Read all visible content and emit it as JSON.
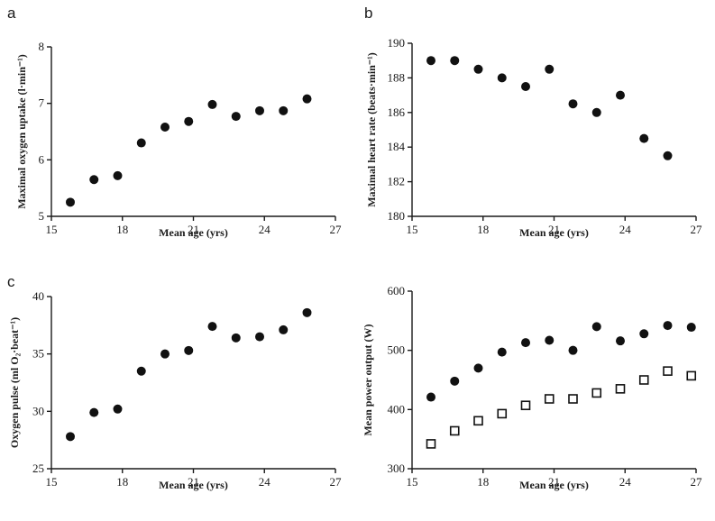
{
  "chart_data": [
    {
      "type": "scatter",
      "panel": "a",
      "xlabel": "Mean age (yrs)",
      "ylabel": "Maximal oxygen uptake (l·min⁻¹)",
      "xlim": [
        15,
        27
      ],
      "ylim": [
        5,
        8
      ],
      "xticks": [
        "15",
        "18",
        "21",
        "24",
        "27"
      ],
      "yticks": [
        "5",
        "6",
        "7",
        "8"
      ],
      "series": [
        {
          "marker": "filled-circle",
          "x": [
            15.8,
            16.8,
            17.8,
            18.8,
            19.8,
            20.8,
            21.8,
            22.8,
            23.8,
            24.8,
            25.8
          ],
          "y": [
            5.25,
            5.65,
            5.72,
            6.3,
            6.58,
            6.68,
            6.98,
            6.77,
            6.87,
            6.87,
            7.08
          ]
        }
      ]
    },
    {
      "type": "scatter",
      "panel": "b",
      "xlabel": "Mean age (yrs)",
      "ylabel": "Maximal heart rate (beats·min⁻¹)",
      "xlim": [
        15,
        27
      ],
      "ylim": [
        180,
        190
      ],
      "xticks": [
        "15",
        "18",
        "21",
        "24",
        "27"
      ],
      "yticks": [
        "180",
        "182",
        "184",
        "186",
        "188",
        "190"
      ],
      "series": [
        {
          "marker": "filled-circle",
          "x": [
            15.8,
            16.8,
            17.8,
            18.8,
            19.8,
            20.8,
            21.8,
            22.8,
            23.8,
            24.8,
            25.8
          ],
          "y": [
            189.0,
            189.0,
            188.5,
            188.0,
            187.5,
            188.5,
            186.5,
            186.0,
            187.0,
            184.5,
            183.5
          ]
        }
      ]
    },
    {
      "type": "scatter",
      "panel": "c",
      "xlabel": "Mean age (yrs)",
      "ylabel": "Oxygen pulse (ml O₂·beat⁻¹)",
      "xlim": [
        15,
        27
      ],
      "ylim": [
        25,
        40
      ],
      "xticks": [
        "15",
        "18",
        "21",
        "24",
        "27"
      ],
      "yticks": [
        "25",
        "30",
        "35",
        "40"
      ],
      "series": [
        {
          "marker": "filled-circle",
          "x": [
            15.8,
            16.8,
            17.8,
            18.8,
            19.8,
            20.8,
            21.8,
            22.8,
            23.8,
            24.8,
            25.8
          ],
          "y": [
            27.8,
            29.9,
            30.2,
            33.5,
            35.0,
            35.3,
            37.4,
            36.4,
            36.5,
            37.1,
            38.6
          ]
        }
      ]
    },
    {
      "type": "scatter",
      "panel": "",
      "xlabel": "Mean age (yrs)",
      "ylabel": "Mean power output (W)",
      "xlim": [
        15,
        27
      ],
      "ylim": [
        300,
        600
      ],
      "xticks": [
        "15",
        "18",
        "21",
        "24",
        "27"
      ],
      "yticks": [
        "300",
        "400",
        "500",
        "600"
      ],
      "series": [
        {
          "marker": "filled-circle",
          "x": [
            15.8,
            16.8,
            17.8,
            18.8,
            19.8,
            20.8,
            21.8,
            22.8,
            23.8,
            24.8,
            25.8,
            26.8
          ],
          "y": [
            421,
            448,
            470,
            497,
            513,
            517,
            500,
            540,
            516,
            528,
            542,
            539
          ]
        },
        {
          "marker": "open-square",
          "x": [
            15.8,
            16.8,
            17.8,
            18.8,
            19.8,
            20.8,
            21.8,
            22.8,
            23.8,
            24.8,
            25.8,
            26.8
          ],
          "y": [
            342,
            364,
            381,
            393,
            407,
            418,
            418,
            428,
            435,
            450,
            465,
            457
          ]
        }
      ]
    }
  ]
}
